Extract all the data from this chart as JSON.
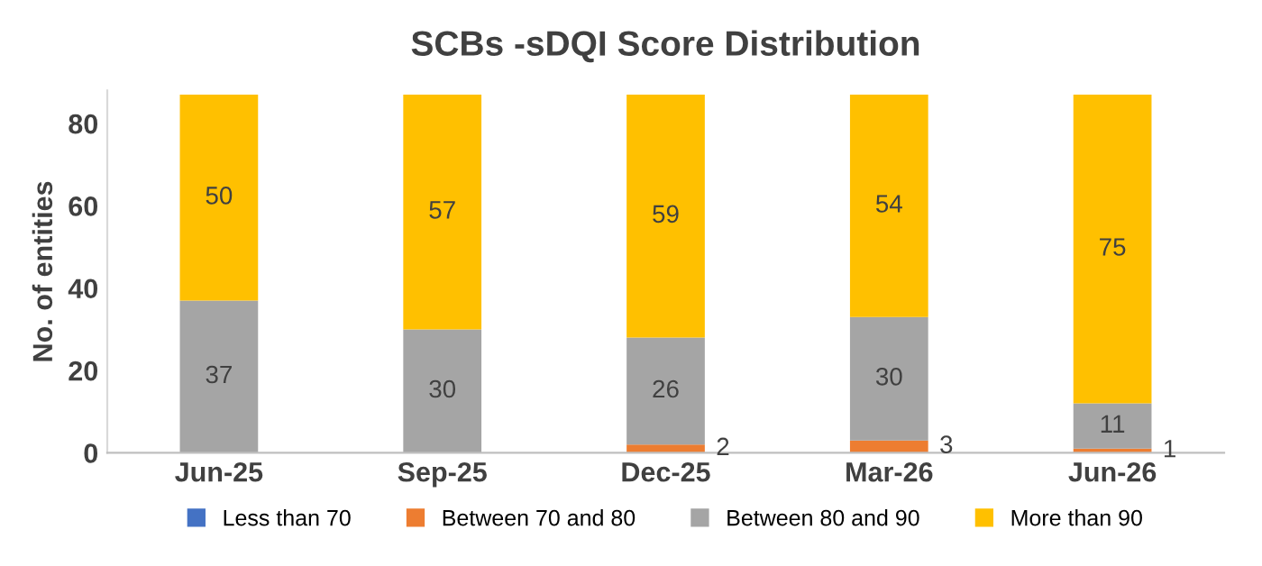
{
  "chart_data": {
    "type": "bar",
    "title": "SCBs -sDQI Score Distribution",
    "ylabel": "No. of entities",
    "categories": [
      "Jun-25",
      "Sep-25",
      "Dec-25",
      "Mar-26",
      "Jun-26"
    ],
    "stacked": true,
    "ylim": [
      0,
      88
    ],
    "yticks": [
      0,
      20,
      40,
      60,
      80
    ],
    "grid": false,
    "legend": "bottom",
    "series": [
      {
        "name": "Less than 70",
        "color": "#4472c4",
        "values": [
          0,
          0,
          0,
          0,
          0
        ],
        "value_labels": [
          null,
          null,
          null,
          null,
          null
        ]
      },
      {
        "name": "Between 70 and 80",
        "color": "#ed7d31",
        "values": [
          0,
          0,
          2,
          3,
          1
        ],
        "value_labels": [
          null,
          null,
          "2",
          "3",
          "1"
        ]
      },
      {
        "name": "Between 80 and 90",
        "color": "#a5a5a5",
        "values": [
          37,
          30,
          26,
          30,
          11
        ],
        "value_labels": [
          "37",
          "30",
          "26",
          "30",
          "11"
        ]
      },
      {
        "name": "More than 90",
        "color": "#ffc000",
        "values": [
          50,
          57,
          59,
          54,
          75
        ],
        "value_labels": [
          "50",
          "57",
          "59",
          "54",
          "75"
        ]
      }
    ]
  }
}
